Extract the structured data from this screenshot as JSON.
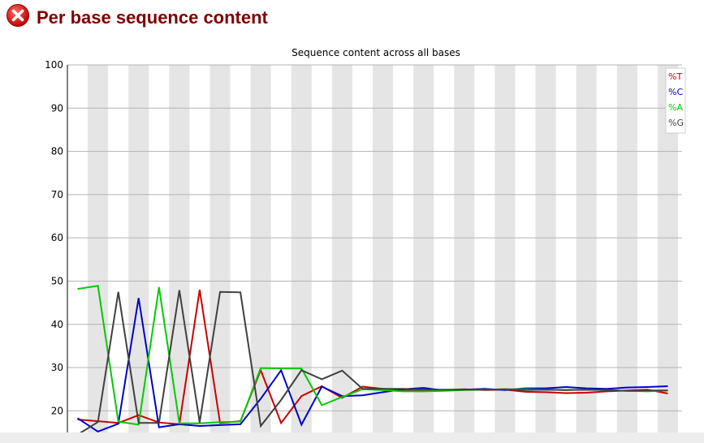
{
  "page": {
    "title": "Per base sequence content",
    "status": "fail",
    "status_icon": "error-x-icon",
    "status_color": "#d41a1a"
  },
  "chart_data": {
    "type": "line",
    "title": "Sequence content across all bases",
    "xlabel": "",
    "ylabel": "",
    "ylim": [
      15,
      100
    ],
    "yticks": [
      "20",
      "30",
      "40",
      "50",
      "60",
      "70",
      "80",
      "90",
      "100"
    ],
    "grid": true,
    "legend_position": "top-right",
    "x": [
      1,
      2,
      3,
      4,
      5,
      6,
      7,
      8,
      9,
      10,
      11,
      12,
      13,
      14,
      15,
      16,
      17,
      18,
      19,
      20,
      21,
      22,
      23,
      24,
      25,
      26,
      27,
      28,
      29,
      30
    ],
    "series": [
      {
        "name": "%T",
        "color": "#cc0000",
        "values": [
          18.0,
          17.6,
          17.2,
          19.0,
          17.3,
          16.9,
          48.0,
          17.2,
          17.6,
          29.4,
          17.2,
          23.4,
          25.7,
          23.0,
          25.6,
          25.1,
          24.8,
          24.6,
          24.8,
          25.0,
          24.8,
          24.9,
          24.4,
          24.3,
          24.1,
          24.2,
          24.5,
          24.7,
          24.9,
          24.0
        ]
      },
      {
        "name": "%C",
        "color": "#0000cc",
        "values": [
          18.3,
          15.2,
          17.0,
          46.1,
          16.2,
          16.9,
          16.5,
          16.7,
          16.9,
          22.8,
          29.4,
          16.8,
          25.6,
          23.4,
          23.6,
          24.3,
          25.0,
          25.3,
          24.7,
          24.9,
          25.1,
          24.8,
          25.2,
          25.2,
          25.5,
          25.2,
          25.1,
          25.4,
          25.5,
          25.7
        ]
      },
      {
        "name": "%A",
        "color": "#00cc00",
        "values": [
          48.2,
          48.9,
          17.5,
          16.8,
          48.6,
          17.1,
          17.1,
          17.4,
          17.5,
          29.9,
          29.8,
          29.8,
          21.3,
          23.2,
          25.0,
          24.8,
          24.5,
          24.5,
          24.6,
          24.8,
          24.9,
          25.0,
          25.0,
          24.9,
          24.8,
          24.9,
          24.8,
          24.6,
          24.5,
          24.7
        ]
      },
      {
        "name": "%G",
        "color": "#404040",
        "values": [
          14.5,
          17.4,
          47.5,
          17.2,
          17.2,
          47.9,
          17.3,
          47.5,
          47.4,
          16.5,
          22.5,
          29.4,
          27.3,
          29.3,
          25.1,
          25.1,
          25.1,
          24.9,
          24.9,
          24.9,
          24.9,
          25.0,
          24.8,
          24.9,
          24.8,
          24.9,
          24.8,
          24.6,
          24.7,
          24.7
        ]
      }
    ]
  }
}
